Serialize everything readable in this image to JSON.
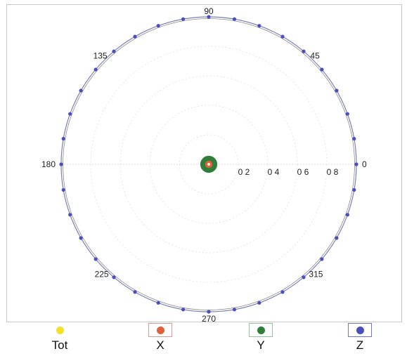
{
  "chart_data": {
    "type": "polar-scatter",
    "radial_range": [
      0,
      1
    ],
    "radial_ticks": [
      "0 2",
      "0 4",
      "0 6",
      "0 8"
    ],
    "angular_ticks": [
      {
        "angle": 0,
        "label": "0"
      },
      {
        "angle": 45,
        "label": "45"
      },
      {
        "angle": 90,
        "label": "90"
      },
      {
        "angle": 135,
        "label": "135"
      },
      {
        "angle": 180,
        "label": "180"
      },
      {
        "angle": 225,
        "label": "225"
      },
      {
        "angle": 270,
        "label": "270"
      },
      {
        "angle": 315,
        "label": "315"
      }
    ],
    "grid": true,
    "legend_position": "bottom",
    "series": [
      {
        "name": "Tot",
        "color": "#f2e02a",
        "swatch_border": "#ffffff",
        "radius": 0.0,
        "angles": []
      },
      {
        "name": "X",
        "color": "#e0603a",
        "swatch_border": "#d89a92",
        "radius": 0.02,
        "angles": [
          0,
          20,
          40,
          60,
          80,
          100,
          120,
          140,
          160,
          180,
          200,
          220,
          240,
          260,
          280,
          300,
          320,
          340
        ]
      },
      {
        "name": "Y",
        "color": "#2f7f3a",
        "swatch_border": "#8fc79a",
        "radius": 0.035,
        "angles": [
          0,
          15,
          30,
          45,
          60,
          75,
          90,
          105,
          120,
          135,
          150,
          165,
          180,
          195,
          210,
          225,
          240,
          255,
          270,
          285,
          300,
          315,
          330,
          345
        ]
      },
      {
        "name": "Z",
        "color": "#4a4fc0",
        "swatch_border": "#6f73c9",
        "radius": 1.0,
        "angles": [
          0,
          10,
          20,
          30,
          40,
          50,
          60,
          70,
          80,
          90,
          100,
          110,
          120,
          130,
          140,
          150,
          160,
          170,
          180,
          190,
          200,
          210,
          220,
          230,
          240,
          250,
          260,
          270,
          280,
          290,
          300,
          310,
          320,
          330,
          340,
          350
        ]
      }
    ]
  }
}
